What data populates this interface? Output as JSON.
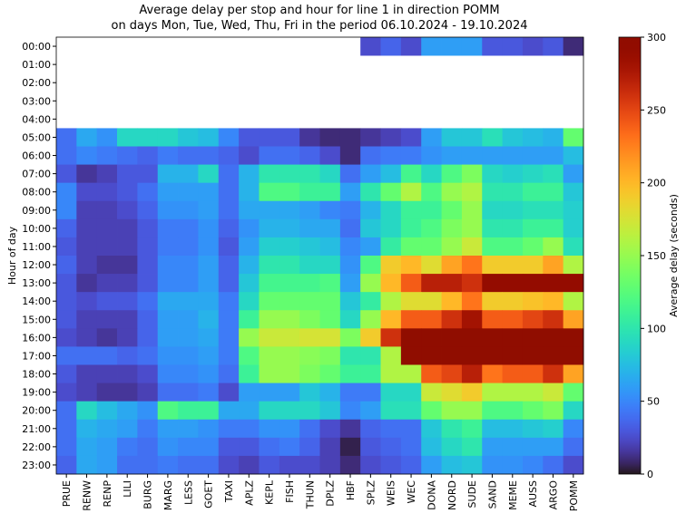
{
  "chart_data": {
    "type": "heatmap",
    "title": "Average delay per stop and hour for line 1 in direction POMM",
    "subtitle": "on days Mon, Tue, Wed, Thu, Fri in the period 06.10.2024 - 19.10.2024",
    "ylabel": "Hour of day",
    "colorbar_label": "Average delay (seconds)",
    "colormap": "turbo",
    "clim": [
      0,
      300
    ],
    "cticks": [
      0,
      50,
      100,
      150,
      200,
      250,
      300
    ],
    "categories": [
      "PRUE",
      "RENW",
      "RENP",
      "LILI",
      "BURG",
      "MARG",
      "LESS",
      "GOET",
      "TAXI",
      "APLZ",
      "KEPL",
      "FISH",
      "THUN",
      "DPLZ",
      "HBF",
      "SPLZ",
      "WEIS",
      "WEC",
      "DONA",
      "NORD",
      "SUDE",
      "SAND",
      "MEME",
      "AUSS",
      "ARGO",
      "POMM"
    ],
    "rows": [
      "00:00",
      "01:00",
      "02:00",
      "03:00",
      "04:00",
      "05:00",
      "06:00",
      "07:00",
      "08:00",
      "09:00",
      "10:00",
      "11:00",
      "12:00",
      "13:00",
      "14:00",
      "15:00",
      "16:00",
      "17:00",
      "18:00",
      "19:00",
      "20:00",
      "21:00",
      "22:00",
      "23:00"
    ],
    "values": [
      [
        null,
        null,
        null,
        null,
        null,
        null,
        null,
        null,
        null,
        null,
        null,
        null,
        null,
        null,
        null,
        25,
        35,
        25,
        60,
        60,
        60,
        30,
        30,
        25,
        30,
        10
      ],
      [
        null,
        null,
        null,
        null,
        null,
        null,
        null,
        null,
        null,
        null,
        null,
        null,
        null,
        null,
        null,
        null,
        null,
        null,
        null,
        null,
        null,
        null,
        null,
        null,
        null,
        null
      ],
      [
        null,
        null,
        null,
        null,
        null,
        null,
        null,
        null,
        null,
        null,
        null,
        null,
        null,
        null,
        null,
        null,
        null,
        null,
        null,
        null,
        null,
        null,
        null,
        null,
        null,
        null
      ],
      [
        null,
        null,
        null,
        null,
        null,
        null,
        null,
        null,
        null,
        null,
        null,
        null,
        null,
        null,
        null,
        null,
        null,
        null,
        null,
        null,
        null,
        null,
        null,
        null,
        null,
        null
      ],
      [
        null,
        null,
        null,
        null,
        null,
        null,
        null,
        null,
        null,
        null,
        null,
        null,
        null,
        null,
        null,
        null,
        null,
        null,
        null,
        null,
        null,
        null,
        null,
        null,
        null,
        null
      ],
      [
        40,
        65,
        55,
        90,
        90,
        90,
        80,
        75,
        50,
        30,
        30,
        30,
        15,
        10,
        10,
        15,
        20,
        25,
        60,
        80,
        80,
        95,
        80,
        75,
        70,
        130
      ],
      [
        40,
        50,
        45,
        40,
        35,
        45,
        40,
        40,
        35,
        25,
        40,
        40,
        35,
        25,
        10,
        40,
        45,
        45,
        55,
        60,
        60,
        60,
        60,
        60,
        60,
        75
      ],
      [
        30,
        15,
        20,
        30,
        30,
        70,
        70,
        90,
        40,
        70,
        100,
        100,
        100,
        90,
        40,
        60,
        75,
        115,
        90,
        120,
        140,
        90,
        85,
        90,
        95,
        60
      ],
      [
        50,
        25,
        25,
        30,
        40,
        60,
        60,
        60,
        40,
        70,
        120,
        120,
        110,
        110,
        60,
        100,
        130,
        160,
        120,
        150,
        160,
        100,
        100,
        110,
        110,
        80
      ],
      [
        50,
        20,
        20,
        25,
        35,
        55,
        55,
        60,
        40,
        65,
        65,
        65,
        60,
        50,
        45,
        70,
        90,
        110,
        110,
        130,
        150,
        90,
        90,
        95,
        95,
        85
      ],
      [
        35,
        20,
        20,
        20,
        30,
        45,
        45,
        55,
        35,
        55,
        70,
        70,
        65,
        65,
        40,
        80,
        90,
        110,
        120,
        140,
        150,
        100,
        100,
        110,
        110,
        85
      ],
      [
        30,
        20,
        20,
        20,
        30,
        45,
        45,
        55,
        30,
        60,
        85,
        85,
        80,
        75,
        50,
        60,
        105,
        130,
        130,
        150,
        170,
        120,
        120,
        130,
        150,
        95
      ],
      [
        35,
        20,
        15,
        15,
        30,
        50,
        50,
        60,
        35,
        70,
        100,
        100,
        90,
        90,
        55,
        120,
        190,
        200,
        180,
        210,
        230,
        190,
        190,
        190,
        210,
        160
      ],
      [
        30,
        15,
        20,
        20,
        30,
        50,
        50,
        60,
        35,
        80,
        115,
        115,
        115,
        120,
        60,
        150,
        200,
        240,
        270,
        270,
        260,
        290,
        290,
        290,
        290,
        290
      ],
      [
        30,
        25,
        30,
        30,
        40,
        65,
        65,
        65,
        45,
        90,
        130,
        130,
        130,
        130,
        80,
        105,
        160,
        180,
        180,
        200,
        230,
        190,
        190,
        195,
        200,
        160
      ],
      [
        30,
        20,
        20,
        20,
        35,
        60,
        60,
        70,
        45,
        110,
        150,
        150,
        140,
        130,
        90,
        150,
        200,
        240,
        240,
        260,
        280,
        240,
        240,
        250,
        260,
        210
      ],
      [
        25,
        20,
        15,
        20,
        35,
        60,
        60,
        65,
        45,
        150,
        170,
        170,
        175,
        175,
        140,
        190,
        260,
        300,
        300,
        300,
        300,
        300,
        300,
        300,
        300,
        300
      ],
      [
        40,
        40,
        40,
        35,
        40,
        55,
        55,
        60,
        45,
        120,
        150,
        150,
        145,
        140,
        100,
        100,
        160,
        300,
        300,
        300,
        300,
        300,
        300,
        300,
        300,
        300
      ],
      [
        30,
        20,
        20,
        20,
        25,
        50,
        50,
        55,
        40,
        110,
        150,
        150,
        140,
        130,
        110,
        110,
        160,
        160,
        240,
        250,
        270,
        230,
        240,
        240,
        260,
        210
      ],
      [
        25,
        20,
        15,
        15,
        20,
        40,
        40,
        45,
        25,
        60,
        60,
        60,
        80,
        70,
        45,
        45,
        90,
        90,
        170,
        180,
        190,
        160,
        160,
        160,
        170,
        130
      ],
      [
        40,
        90,
        75,
        65,
        55,
        120,
        110,
        110,
        65,
        65,
        90,
        90,
        90,
        80,
        50,
        60,
        95,
        95,
        130,
        150,
        150,
        120,
        120,
        130,
        140,
        90
      ],
      [
        40,
        70,
        65,
        60,
        45,
        60,
        60,
        55,
        45,
        45,
        55,
        55,
        40,
        25,
        15,
        35,
        40,
        40,
        80,
        100,
        110,
        75,
        75,
        80,
        85,
        50
      ],
      [
        40,
        65,
        60,
        45,
        40,
        55,
        50,
        50,
        30,
        30,
        40,
        45,
        35,
        20,
        5,
        30,
        35,
        40,
        75,
        90,
        100,
        60,
        60,
        60,
        60,
        40
      ],
      [
        35,
        65,
        60,
        40,
        40,
        45,
        40,
        40,
        25,
        20,
        30,
        25,
        25,
        20,
        10,
        25,
        30,
        35,
        60,
        75,
        80,
        55,
        55,
        50,
        40,
        25
      ]
    ]
  }
}
